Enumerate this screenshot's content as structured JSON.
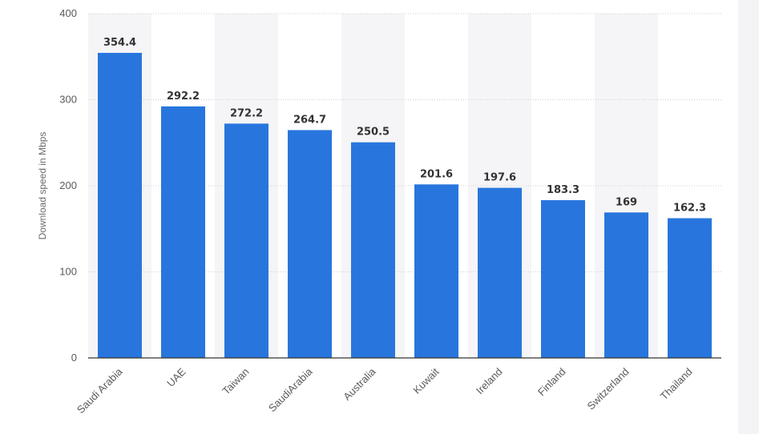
{
  "chart_data": {
    "type": "bar",
    "categories": [
      "Saudi Arabia",
      "UAE",
      "Taiwan",
      "SaudiArabia",
      "Australia",
      "Kuwait",
      "Ireland",
      "Finland",
      "Switzerland",
      "Thailand"
    ],
    "values": [
      354.4,
      292.2,
      272.2,
      264.7,
      250.5,
      201.6,
      197.6,
      183.3,
      169,
      162.3
    ],
    "value_labels": [
      "354.4",
      "292.2",
      "272.2",
      "264.7",
      "250.5",
      "201.6",
      "197.6",
      "183.3",
      "169",
      "162.3"
    ],
    "ylabel": "Download speed in Mbps",
    "ylim": [
      0,
      400
    ],
    "yticks": [
      "0",
      "100",
      "200",
      "300",
      "400"
    ],
    "grid": true,
    "bar_color": "#2876dd",
    "band_color": "#f5f5f7"
  }
}
